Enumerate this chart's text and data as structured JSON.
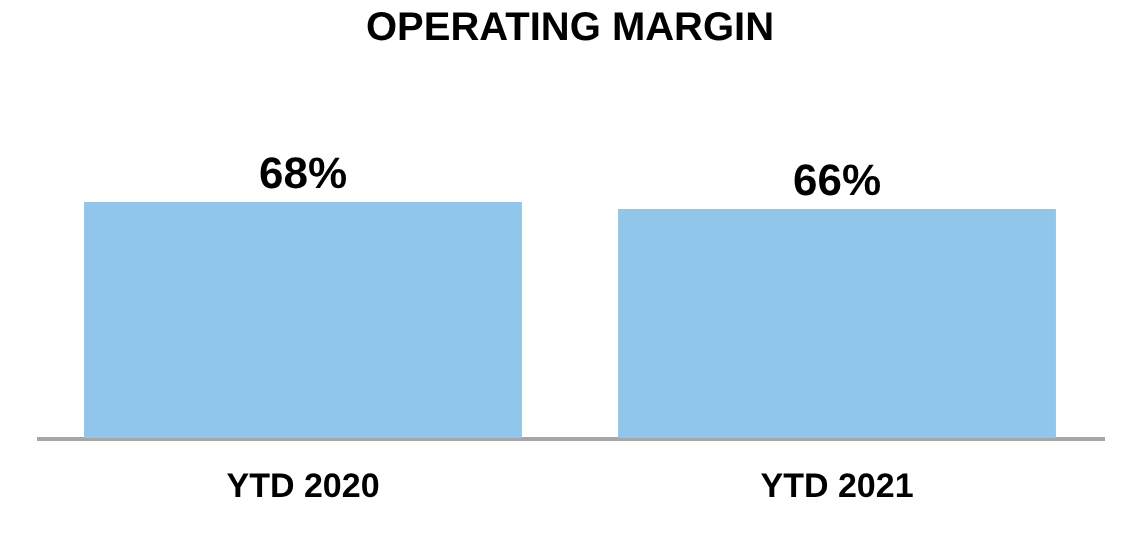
{
  "chart_data": {
    "type": "bar",
    "title": "OPERATING MARGIN",
    "categories": [
      "YTD 2020",
      "YTD 2021"
    ],
    "values": [
      68,
      66
    ],
    "value_labels": [
      "68%",
      "66%"
    ],
    "color": "#8fc6e9",
    "grid": false
  }
}
